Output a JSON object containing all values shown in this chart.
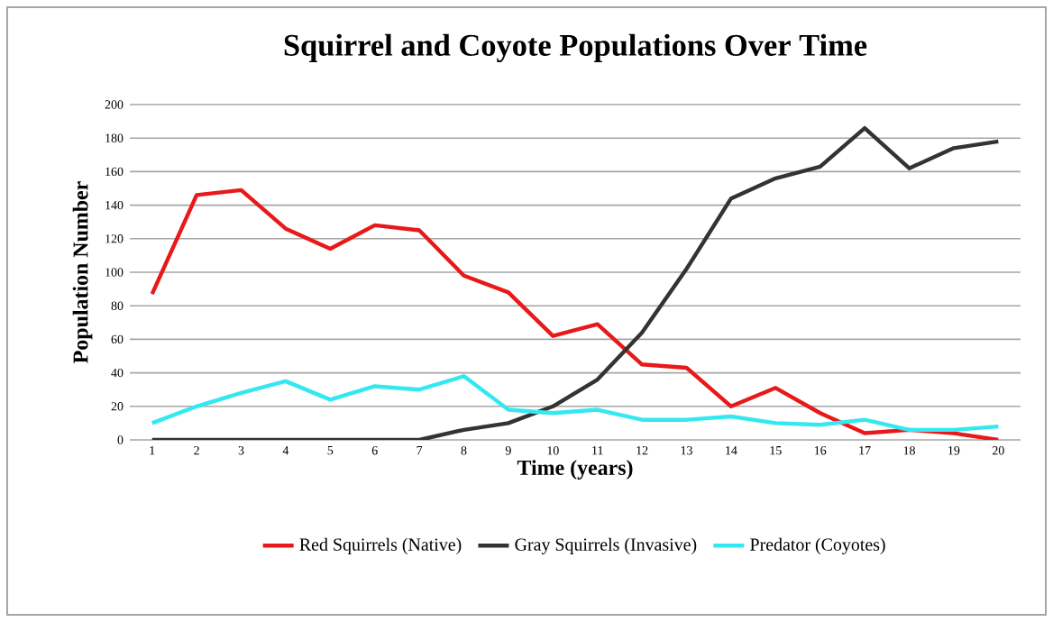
{
  "chart_data": {
    "type": "line",
    "title": "Squirrel and Coyote Populations Over Time",
    "xlabel": "Time (years)",
    "ylabel": "Population Number",
    "categories": [
      "1",
      "2",
      "3",
      "4",
      "5",
      "6",
      "7",
      "8",
      "9",
      "10",
      "11",
      "12",
      "13",
      "14",
      "15",
      "16",
      "17",
      "18",
      "19",
      "20"
    ],
    "series": [
      {
        "name": "Red Squirrels (Native)",
        "color": "#e8191a",
        "values": [
          87,
          146,
          149,
          126,
          114,
          128,
          125,
          98,
          88,
          62,
          69,
          45,
          43,
          20,
          31,
          16,
          4,
          6,
          4,
          0
        ]
      },
      {
        "name": "Gray Squirrels (Invasive)",
        "color": "#333333",
        "values": [
          0,
          0,
          0,
          0,
          0,
          0,
          0,
          6,
          10,
          20,
          36,
          64,
          102,
          144,
          156,
          163,
          186,
          162,
          174,
          178
        ]
      },
      {
        "name": "Predator (Coyotes)",
        "color": "#33e8f0",
        "values": [
          10,
          20,
          28,
          35,
          24,
          32,
          30,
          38,
          18,
          16,
          18,
          12,
          12,
          14,
          10,
          9,
          12,
          6,
          6,
          8
        ]
      }
    ],
    "ylim": [
      0,
      200
    ],
    "yticks": [
      0,
      20,
      40,
      60,
      80,
      100,
      120,
      140,
      160,
      180,
      200
    ],
    "grid": "y",
    "legend": "bottom",
    "marker": "none",
    "line_style": "solid"
  }
}
